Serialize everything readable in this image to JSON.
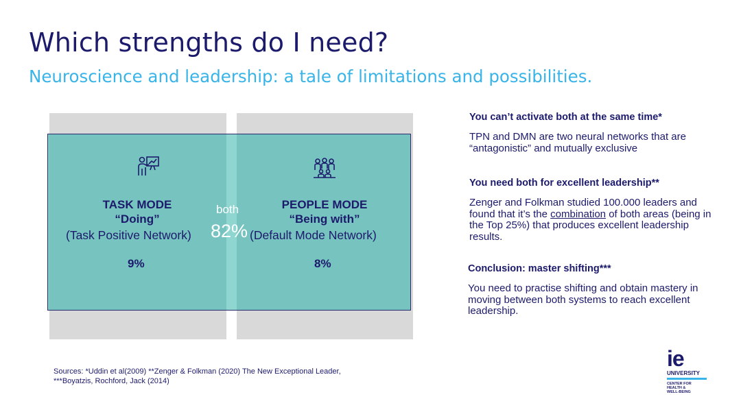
{
  "slide": {
    "title": "Which strengths do I need?",
    "subtitle": "Neuroscience and leadership: a tale of limitations and possibilities."
  },
  "diagram": {
    "task": {
      "icon": "presenter-board-icon",
      "title": "TASK MODE",
      "quote": "“Doing”",
      "network": "(Task Positive Network)",
      "percent": "9%"
    },
    "people": {
      "icon": "people-group-icon",
      "title": "PEOPLE MODE",
      "quote": "“Being with”",
      "network": "(Default Mode Network)",
      "percent": "8%"
    },
    "both": {
      "label": "both",
      "percent": "82%"
    }
  },
  "points": [
    {
      "heading": "You can’t activate both at the same time*",
      "body": "TPN and DMN are two neural networks that are “antagonistic” and mutually exclusive"
    },
    {
      "heading": "You need both for excellent leadership**",
      "body_pre": "Zenger and Folkman studied 100.000 leaders and found that it’s the ",
      "body_link": "combination",
      "body_post": " of both areas (being in the Top 25%) that produces excellent leadership results."
    },
    {
      "heading": "Conclusion: master shifting***",
      "body": "You need to practise shifting and obtain mastery in moving between both systems to reach excellent leadership."
    }
  ],
  "sources": "Sources: *Uddin et al(2009) **Zenger & Folkman (2020) The New Exceptional Leader, ***Boyatzis, Rochford, Jack (2014)",
  "logo": {
    "mark": "ie",
    "name": "UNIVERSITY",
    "line1": "CENTER FOR",
    "line2": "HEALTH &",
    "line3": "WELL-BEING"
  },
  "colors": {
    "navy": "#1c1a6b",
    "accent": "#39b4e8",
    "teal": "#5bbcb8",
    "gray": "#d9d9d9"
  }
}
